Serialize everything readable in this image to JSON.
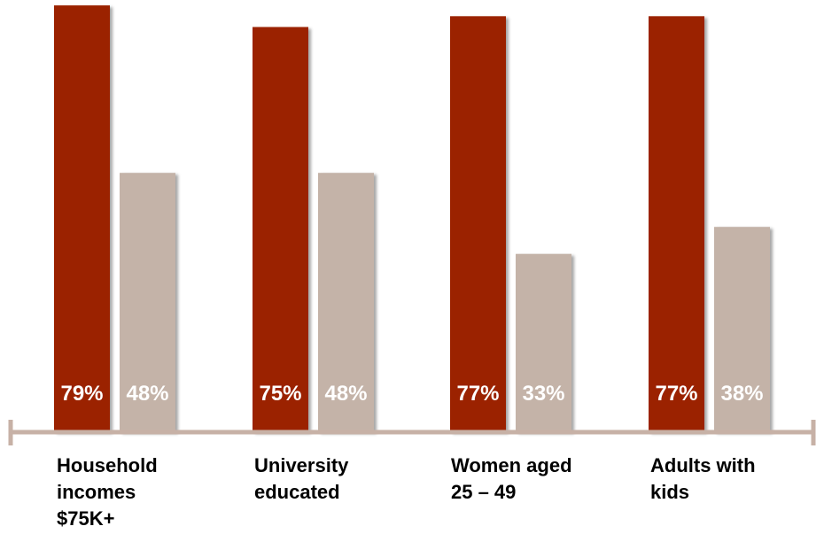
{
  "chart_data": {
    "type": "bar",
    "categories": [
      [
        "Household",
        "incomes",
        "$75K+"
      ],
      [
        "University",
        "educated"
      ],
      [
        "Women aged",
        "25 – 49"
      ],
      [
        "Adults with",
        "kids"
      ]
    ],
    "series": [
      {
        "values": [
          79,
          75,
          77,
          77
        ],
        "labels": [
          "79%",
          "75%",
          "77%",
          "77%"
        ]
      },
      {
        "values": [
          48,
          48,
          33,
          38
        ],
        "labels": [
          "48%",
          "48%",
          "33%",
          "38%"
        ]
      }
    ],
    "ylim": [
      0,
      100
    ],
    "grid": false,
    "legend": "none"
  },
  "colors": {
    "series_1": "#9b2100",
    "series_2": "#c4b3a8",
    "axis": "#c7b1a6",
    "label_text": "#ffffff",
    "category_text": "#000000"
  }
}
